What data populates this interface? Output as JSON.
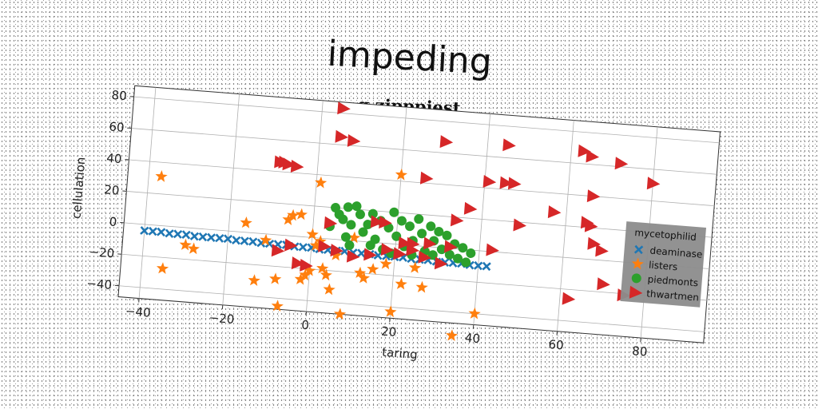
{
  "chart_data": {
    "type": "scatter",
    "title": "impeding",
    "subtitle": "g zipppiest",
    "xlabel": "taring",
    "ylabel": "cellulation",
    "xlim": [
      -45,
      95
    ],
    "ylim": [
      -47,
      87
    ],
    "xticks": [
      -40,
      -20,
      0,
      20,
      40,
      60,
      80
    ],
    "yticks": [
      -40,
      -20,
      0,
      20,
      40,
      60,
      80
    ],
    "grid": true,
    "legend": {
      "title": "mycetophilid",
      "placement": "right"
    },
    "series": [
      {
        "name": "deaminase",
        "marker": "x",
        "color": "#1f77b4",
        "points": [
          [
            -40,
            -4
          ],
          [
            -38,
            -4
          ],
          [
            -36,
            -4
          ],
          [
            -34,
            -4.5
          ],
          [
            -32,
            -4.5
          ],
          [
            -30,
            -4.5
          ],
          [
            -28,
            -5
          ],
          [
            -26,
            -5
          ],
          [
            -24,
            -5
          ],
          [
            -22,
            -5
          ],
          [
            -20,
            -5
          ],
          [
            -18,
            -5.5
          ],
          [
            -16,
            -5.5
          ],
          [
            -14,
            -5.5
          ],
          [
            -12,
            -6
          ],
          [
            -10,
            -6
          ],
          [
            -8,
            -6
          ],
          [
            -6,
            -6
          ],
          [
            -4,
            -6.5
          ],
          [
            -2,
            -6.5
          ],
          [
            0,
            -6.5
          ],
          [
            2,
            -7
          ],
          [
            4,
            -7
          ],
          [
            6,
            -7
          ],
          [
            8,
            -7
          ],
          [
            10,
            -7.5
          ],
          [
            12,
            -7.5
          ],
          [
            14,
            -7.5
          ],
          [
            16,
            -8
          ],
          [
            18,
            -8
          ],
          [
            20,
            -8
          ],
          [
            22,
            -8
          ],
          [
            24,
            -8.5
          ],
          [
            26,
            -8.5
          ],
          [
            28,
            -8.5
          ],
          [
            30,
            -9
          ],
          [
            32,
            -9
          ],
          [
            34,
            -9
          ],
          [
            36,
            -9
          ],
          [
            38,
            -9.5
          ],
          [
            40,
            -9.5
          ],
          [
            42,
            -9.5
          ]
        ]
      },
      {
        "name": "listers",
        "marker": "star",
        "color": "#ff7f0e",
        "points": [
          [
            -37,
            31
          ],
          [
            -35,
            -27
          ],
          [
            -30,
            -11
          ],
          [
            -28,
            -13
          ],
          [
            -16,
            6
          ],
          [
            -13,
            -30
          ],
          [
            -11,
            -4
          ],
          [
            -8,
            -28
          ],
          [
            -7,
            -45
          ],
          [
            -6,
            10
          ],
          [
            -5,
            13
          ],
          [
            -3,
            14
          ],
          [
            -2,
            -27
          ],
          [
            -1,
            -24
          ],
          [
            0,
            -21
          ],
          [
            0,
            2
          ],
          [
            1,
            35
          ],
          [
            1,
            -5
          ],
          [
            2,
            -2
          ],
          [
            3,
            -19
          ],
          [
            4,
            -23
          ],
          [
            5,
            -32
          ],
          [
            6,
            -10
          ],
          [
            8,
            -47
          ],
          [
            10,
            2
          ],
          [
            12,
            -20
          ],
          [
            13,
            -23
          ],
          [
            15,
            -17
          ],
          [
            18,
            -13
          ],
          [
            20,
            -43
          ],
          [
            20,
            44
          ],
          [
            22,
            -25
          ],
          [
            25,
            -14
          ],
          [
            27,
            -26
          ],
          [
            28,
            -5
          ],
          [
            35,
            -55
          ],
          [
            40,
            -40
          ]
        ]
      },
      {
        "name": "piedmonts",
        "marker": "circle",
        "color": "#2ca02c",
        "points": [
          [
            4,
            8
          ],
          [
            5,
            20
          ],
          [
            6,
            16
          ],
          [
            7,
            13
          ],
          [
            8,
            2
          ],
          [
            8,
            21
          ],
          [
            9,
            10
          ],
          [
            9,
            -3
          ],
          [
            10,
            22
          ],
          [
            11,
            17
          ],
          [
            12,
            6
          ],
          [
            13,
            11
          ],
          [
            14,
            18
          ],
          [
            15,
            2
          ],
          [
            16,
            14
          ],
          [
            17,
            -4
          ],
          [
            18,
            10
          ],
          [
            19,
            20
          ],
          [
            20,
            5
          ],
          [
            21,
            15
          ],
          [
            22,
            -1
          ],
          [
            23,
            12
          ],
          [
            24,
            3
          ],
          [
            25,
            17
          ],
          [
            26,
            8
          ],
          [
            27,
            -3
          ],
          [
            28,
            13
          ],
          [
            29,
            4
          ],
          [
            30,
            10
          ],
          [
            31,
            -1
          ],
          [
            32,
            8
          ],
          [
            33,
            -4
          ],
          [
            34,
            3
          ],
          [
            35,
            -6
          ],
          [
            36,
            1
          ],
          [
            37,
            -8
          ],
          [
            38,
            -2
          ],
          [
            14,
            -2
          ],
          [
            19,
            -6
          ],
          [
            24,
            -6
          ],
          [
            29,
            -5
          ]
        ]
      },
      {
        "name": "thwartmen",
        "marker": "triangle-right",
        "color": "#d62728",
        "points": [
          [
            5,
            83
          ],
          [
            5,
            65
          ],
          [
            8,
            63
          ],
          [
            30,
            67
          ],
          [
            45,
            68
          ],
          [
            63,
            68
          ],
          [
            65,
            65
          ],
          [
            72,
            62
          ],
          [
            80,
            51
          ],
          [
            -9,
            46
          ],
          [
            -8,
            46
          ],
          [
            -7,
            45
          ],
          [
            -5,
            44
          ],
          [
            26,
            43
          ],
          [
            41,
            44
          ],
          [
            45,
            44
          ],
          [
            47,
            44
          ],
          [
            66,
            40
          ],
          [
            57,
            28
          ],
          [
            37,
            26
          ],
          [
            34,
            18
          ],
          [
            49,
            18
          ],
          [
            65,
            23
          ],
          [
            66,
            21
          ],
          [
            67,
            10
          ],
          [
            69,
            6
          ],
          [
            15,
            13
          ],
          [
            17,
            13
          ],
          [
            4,
            10
          ],
          [
            22,
            1
          ],
          [
            24,
            1
          ],
          [
            28,
            2
          ],
          [
            33,
            1
          ],
          [
            43,
            1
          ],
          [
            -8,
            -10
          ],
          [
            -5,
            -6
          ],
          [
            -3,
            -17
          ],
          [
            -1,
            -18
          ],
          [
            3,
            -5
          ],
          [
            6,
            -7
          ],
          [
            10,
            -10
          ],
          [
            14,
            -8
          ],
          [
            18,
            -4
          ],
          [
            21,
            -6
          ],
          [
            24,
            -3
          ],
          [
            27,
            -7
          ],
          [
            31,
            -10
          ],
          [
            62,
            -26
          ],
          [
            70,
            -15
          ],
          [
            75,
            -21
          ]
        ]
      }
    ]
  }
}
